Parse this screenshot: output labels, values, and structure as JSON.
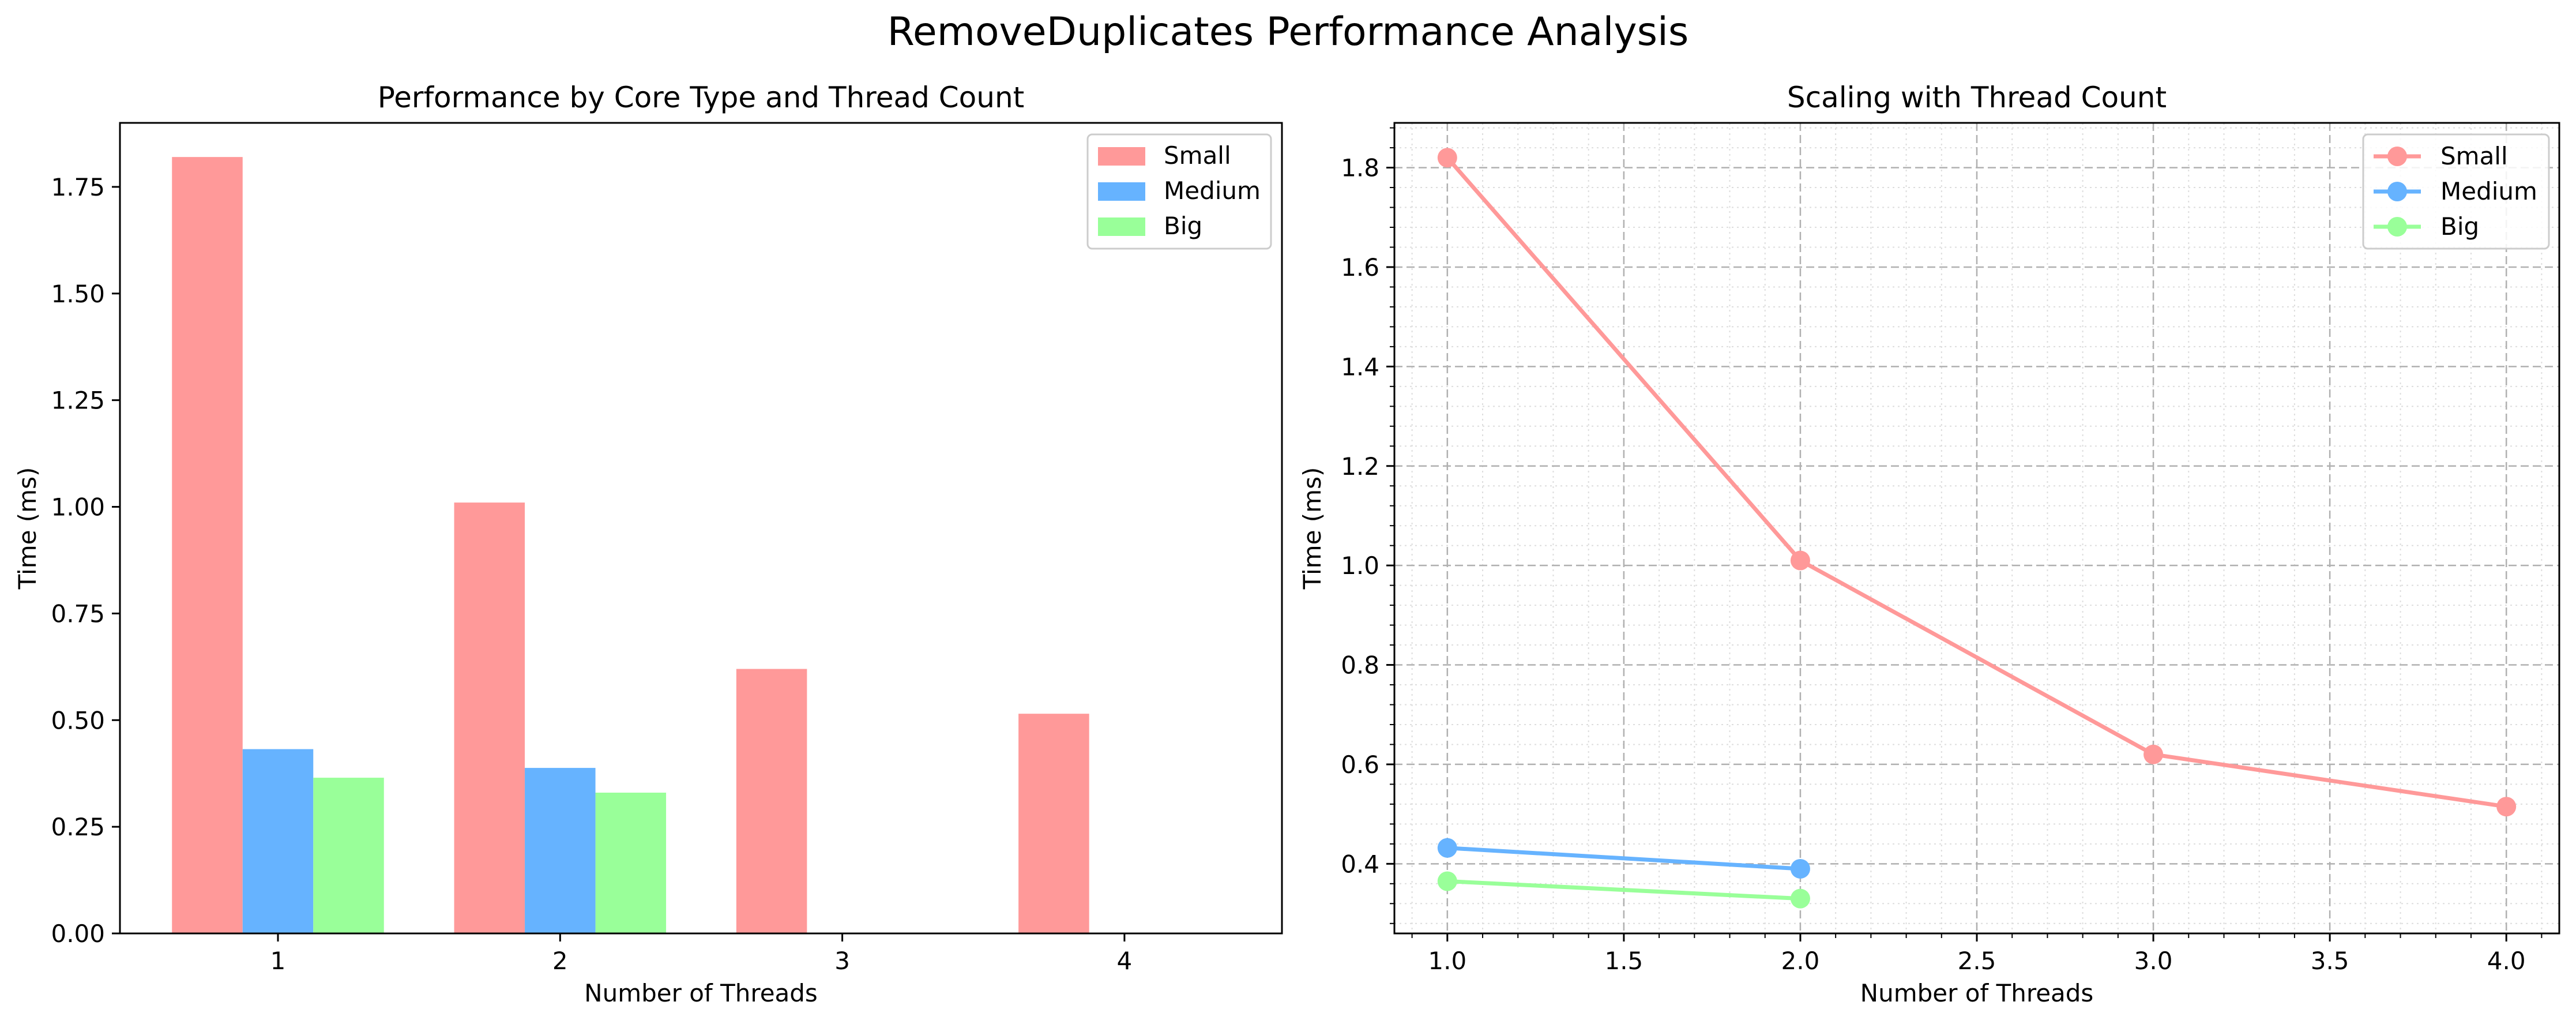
{
  "suptitle": "RemoveDuplicates Performance Analysis",
  "colors": {
    "Small": "#ff9999",
    "Medium": "#66b3ff",
    "Big": "#99ff99"
  },
  "chart_data": [
    {
      "type": "bar",
      "title": "Performance by Core Type and Thread Count",
      "xlabel": "Number of Threads",
      "ylabel": "Time (ms)",
      "categories": [
        "1",
        "2",
        "3",
        "4"
      ],
      "ylim": [
        0,
        1.9
      ],
      "yticks": [
        "0.00",
        "0.25",
        "0.50",
        "0.75",
        "1.00",
        "1.25",
        "1.50",
        "1.75"
      ],
      "legend_position": "upper right",
      "series": [
        {
          "name": "Small",
          "values": [
            1.82,
            1.01,
            0.62,
            0.515
          ]
        },
        {
          "name": "Medium",
          "values": [
            0.432,
            0.388,
            null,
            null
          ]
        },
        {
          "name": "Big",
          "values": [
            0.365,
            0.33,
            null,
            null
          ]
        }
      ]
    },
    {
      "type": "line",
      "title": "Scaling with Thread Count",
      "xlabel": "Number of Threads",
      "ylabel": "Time (ms)",
      "xlim": [
        0.85,
        4.15
      ],
      "ylim": [
        0.26,
        1.89
      ],
      "xticks": [
        "1.0",
        "1.5",
        "2.0",
        "2.5",
        "3.0",
        "3.5",
        "4.0"
      ],
      "yticks": [
        "0.4",
        "0.6",
        "0.8",
        "1.0",
        "1.2",
        "1.4",
        "1.6",
        "1.8"
      ],
      "grid": true,
      "minor_grid": true,
      "legend_position": "upper right",
      "series": [
        {
          "name": "Small",
          "x": [
            1,
            2,
            3,
            4
          ],
          "y": [
            1.82,
            1.01,
            0.62,
            0.515
          ]
        },
        {
          "name": "Medium",
          "x": [
            1,
            2
          ],
          "y": [
            0.432,
            0.39
          ]
        },
        {
          "name": "Big",
          "x": [
            1,
            2
          ],
          "y": [
            0.365,
            0.33
          ]
        }
      ]
    }
  ]
}
